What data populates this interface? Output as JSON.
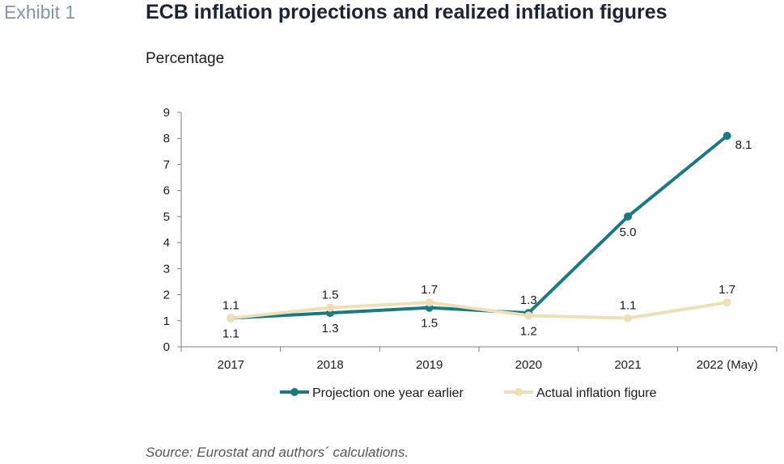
{
  "header": {
    "exhibit": "Exhibit 1",
    "title": "ECB inflation projections and realized inflation figures",
    "subtitle": "Percentage"
  },
  "footer": {
    "source": "Source: Eurostat and authors´ calculations."
  },
  "chart_data": {
    "type": "line",
    "categories": [
      "2017",
      "2018",
      "2019",
      "2020",
      "2021",
      "2022 (May)"
    ],
    "ylim": [
      0,
      9
    ],
    "yticks": [
      0,
      1,
      2,
      3,
      4,
      5,
      6,
      7,
      8,
      9
    ],
    "grid": false,
    "legend_position": "bottom",
    "series": [
      {
        "name": "Projection one year earlier",
        "color": "#1b7a7f",
        "values": [
          1.1,
          1.3,
          1.5,
          1.3,
          5.0,
          8.1
        ],
        "labels": [
          "1.1",
          "1.3",
          "1.5",
          "1.3",
          "5.0",
          "8.1"
        ],
        "label_side": [
          "below",
          "below",
          "below",
          "above",
          "below",
          "right"
        ]
      },
      {
        "name": "Actual inflation figure",
        "color": "#ede0b8",
        "values": [
          1.1,
          1.5,
          1.7,
          1.2,
          1.1,
          1.7
        ],
        "labels": [
          "1.1",
          "1.5",
          "1.7",
          "1.2",
          "1.1",
          "1.7"
        ],
        "label_side": [
          "above",
          "above",
          "above",
          "below",
          "above",
          "above"
        ]
      }
    ]
  }
}
